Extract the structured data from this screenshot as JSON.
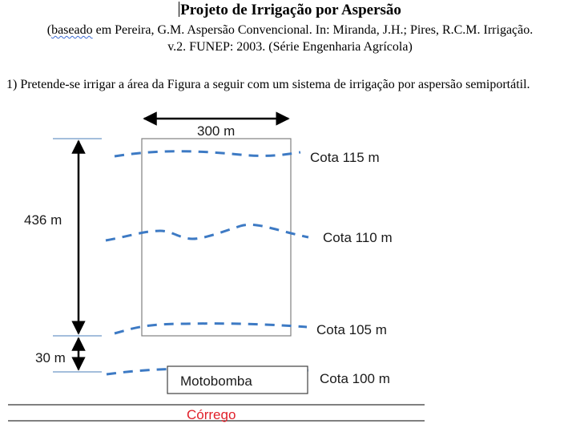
{
  "header": {
    "title": "Projeto de Irrigação por Aspersão",
    "subtitle_underlined": "baseado",
    "subtitle_rest_line1": " em Pereira, G.M. Aspersão Convencional. In: Miranda, J.H.; Pires, R.C.M. Irrigação.",
    "subtitle_line2": "v.2. FUNEP: 2003. (Série Engenharia Agrícola)",
    "subtitle_open_paren": "("
  },
  "question": {
    "text": "1) Pretende-se irrigar a área da Figura a seguir com um sistema de irrigação por aspersão semiportátil."
  },
  "figure": {
    "width_label": "300 m",
    "length_label": "436 m",
    "gap_label": "30 m",
    "pump_label": "Motobomba",
    "stream_label": "Córrego",
    "contours": [
      {
        "label": "Cota 115 m"
      },
      {
        "label": "Cota 110 m"
      },
      {
        "label": "Cota 105 m"
      },
      {
        "label": "Cota 100 m"
      }
    ],
    "contour_color": "#3d7ac4",
    "stream_color": "#e0202a"
  }
}
